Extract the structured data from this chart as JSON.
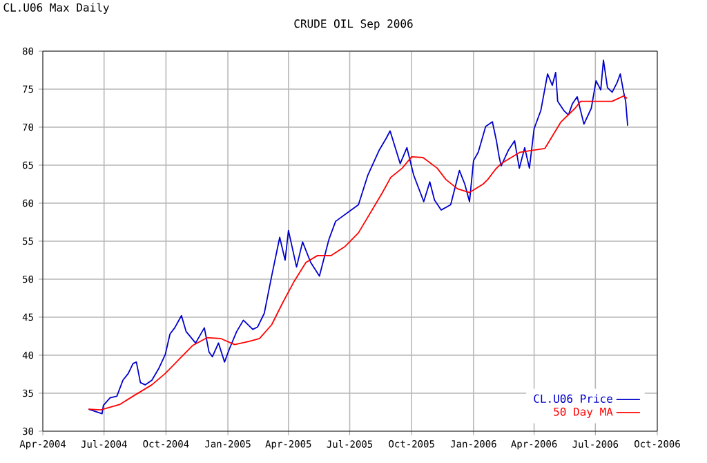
{
  "chart_data": {
    "type": "line",
    "title": "CRUDE OIL Sep 2006",
    "annotations": [
      "CL.U06 Max Daily"
    ],
    "xlim": [
      "2004-04-01",
      "2006-10-01"
    ],
    "xticks": [
      {
        "value": "2004-04-01",
        "label": "Apr-2004"
      },
      {
        "value": "2004-07-01",
        "label": "Jul-2004"
      },
      {
        "value": "2004-10-01",
        "label": "Oct-2004"
      },
      {
        "value": "2005-01-01",
        "label": "Jan-2005"
      },
      {
        "value": "2005-04-01",
        "label": "Apr-2005"
      },
      {
        "value": "2005-07-01",
        "label": "Jul-2005"
      },
      {
        "value": "2005-10-01",
        "label": "Oct-2005"
      },
      {
        "value": "2006-01-01",
        "label": "Jan-2006"
      },
      {
        "value": "2006-04-01",
        "label": "Apr-2006"
      },
      {
        "value": "2006-07-01",
        "label": "Jul-2006"
      },
      {
        "value": "2006-10-01",
        "label": "Oct-2006"
      }
    ],
    "ylim": [
      30,
      80
    ],
    "yticks": [
      30,
      35,
      40,
      45,
      50,
      55,
      60,
      65,
      70,
      75,
      80
    ],
    "grid": true,
    "legend": "bottom right",
    "marker": "none",
    "line_style": "solid",
    "series": [
      {
        "name": "CL.U06 Price",
        "color": "#0000cc",
        "x": [
          "2004-06-08",
          "2004-06-28",
          "2004-06-30",
          "2004-07-10",
          "2004-07-20",
          "2004-07-29",
          "2004-08-06",
          "2004-08-13",
          "2004-08-18",
          "2004-08-24",
          "2004-08-31",
          "2004-09-10",
          "2004-09-20",
          "2004-09-30",
          "2004-10-07",
          "2004-10-14",
          "2004-10-24",
          "2004-10-31",
          "2004-11-14",
          "2004-11-27",
          "2004-12-04",
          "2004-12-09",
          "2004-12-18",
          "2004-12-27",
          "2005-01-04",
          "2005-01-14",
          "2005-01-24",
          "2005-02-07",
          "2005-02-14",
          "2005-02-24",
          "2005-03-07",
          "2005-03-19",
          "2005-03-27",
          "2005-04-01",
          "2005-04-13",
          "2005-04-22",
          "2005-05-04",
          "2005-05-17",
          "2005-05-31",
          "2005-06-10",
          "2005-07-14",
          "2005-07-28",
          "2005-08-14",
          "2005-08-24",
          "2005-08-30",
          "2005-09-14",
          "2005-09-24",
          "2005-10-04",
          "2005-10-19",
          "2005-10-28",
          "2005-11-04",
          "2005-11-14",
          "2005-11-28",
          "2005-12-11",
          "2005-12-19",
          "2005-12-26",
          "2006-01-01",
          "2006-01-08",
          "2006-01-19",
          "2006-01-29",
          "2006-02-04",
          "2006-02-08",
          "2006-02-11",
          "2006-02-22",
          "2006-03-03",
          "2006-03-10",
          "2006-03-18",
          "2006-03-25",
          "2006-04-01",
          "2006-04-11",
          "2006-04-21",
          "2006-04-28",
          "2006-05-03",
          "2006-05-06",
          "2006-05-15",
          "2006-05-22",
          "2006-05-28",
          "2006-06-04",
          "2006-06-14",
          "2006-06-25",
          "2006-07-02",
          "2006-07-09",
          "2006-07-13",
          "2006-07-19",
          "2006-07-26",
          "2006-08-02",
          "2006-08-07",
          "2006-08-12",
          "2006-08-15",
          "2006-08-18"
        ],
        "values": [
          32.9,
          32.3,
          33.4,
          34.4,
          34.6,
          36.7,
          37.6,
          38.9,
          39.1,
          36.4,
          36.1,
          36.7,
          38.2,
          40.1,
          42.8,
          43.6,
          45.2,
          43.1,
          41.6,
          43.6,
          40.4,
          39.8,
          41.6,
          39.1,
          41.0,
          43.1,
          44.6,
          43.4,
          43.7,
          45.5,
          50.4,
          55.5,
          52.5,
          56.4,
          51.6,
          54.9,
          52.2,
          50.4,
          55.2,
          57.6,
          59.8,
          63.7,
          67.0,
          68.5,
          69.5,
          65.2,
          67.3,
          63.7,
          60.2,
          62.8,
          60.4,
          59.1,
          59.8,
          64.3,
          62.5,
          60.2,
          65.6,
          66.7,
          70.1,
          70.7,
          68.2,
          66.1,
          64.9,
          67.0,
          68.2,
          64.6,
          67.3,
          64.6,
          69.8,
          72.2,
          77.0,
          75.5,
          77.2,
          73.4,
          72.2,
          71.6,
          73.1,
          74.0,
          70.4,
          72.5,
          76.1,
          74.9,
          78.8,
          75.2,
          74.6,
          75.8,
          77.0,
          74.6,
          73.4,
          70.2
        ]
      },
      {
        "name": "50 Day MA",
        "color": "#ff0000",
        "x": [
          "2004-06-08",
          "2004-06-26",
          "2004-07-24",
          "2004-08-13",
          "2004-09-10",
          "2004-09-30",
          "2004-10-21",
          "2004-11-10",
          "2004-12-01",
          "2004-12-21",
          "2005-01-11",
          "2005-02-01",
          "2005-02-17",
          "2005-03-07",
          "2005-03-24",
          "2005-04-10",
          "2005-04-27",
          "2005-05-14",
          "2005-06-03",
          "2005-06-24",
          "2005-07-14",
          "2005-08-18",
          "2005-08-31",
          "2005-09-17",
          "2005-10-01",
          "2005-10-18",
          "2005-11-08",
          "2005-11-21",
          "2005-12-08",
          "2005-12-26",
          "2006-01-15",
          "2006-01-22",
          "2006-02-03",
          "2006-02-11",
          "2006-03-11",
          "2006-04-17",
          "2006-05-11",
          "2006-06-01",
          "2006-06-09",
          "2006-07-26",
          "2006-08-12",
          "2006-08-17"
        ],
        "values": [
          32.9,
          32.8,
          33.5,
          34.6,
          36.1,
          37.6,
          39.5,
          41.3,
          42.3,
          42.2,
          41.4,
          41.8,
          42.2,
          44.0,
          47.0,
          49.8,
          52.2,
          53.1,
          53.1,
          54.3,
          56.1,
          61.3,
          63.4,
          64.6,
          66.1,
          66.0,
          64.6,
          63.1,
          61.9,
          61.4,
          62.5,
          63.1,
          64.5,
          65.2,
          66.7,
          67.2,
          70.7,
          72.5,
          73.4,
          73.4,
          74.1,
          73.8
        ]
      }
    ]
  }
}
